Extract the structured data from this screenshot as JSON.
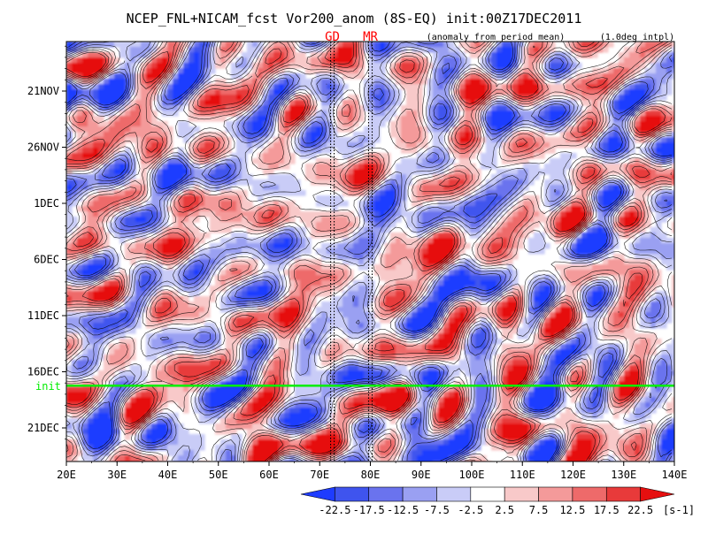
{
  "chart_data": {
    "type": "heatmap",
    "title": "NCEP_FNL+NICAM_fcst Vor200_anom (8S-EQ) init:00Z17DEC2011",
    "subtitle": "(anomaly from period mean)",
    "interp_note": "(1.0deg intpl)",
    "x_axis": {
      "range_deg_east": [
        20,
        140
      ],
      "ticks": [
        20,
        30,
        40,
        50,
        60,
        70,
        80,
        90,
        100,
        110,
        120,
        130,
        140
      ],
      "tick_labels": [
        "20E",
        "30E",
        "40E",
        "50E",
        "60E",
        "70E",
        "80E",
        "90E",
        "100E",
        "110E",
        "120E",
        "130E",
        "140E"
      ]
    },
    "y_axis": {
      "direction": "time increases downward",
      "ticks": [
        "21NOV",
        "26NOV",
        "1DEC",
        "6DEC",
        "11DEC",
        "16DEC",
        "21DEC"
      ]
    },
    "markers": [
      {
        "label": "GD",
        "lon": 72.5,
        "style": "dotted vertical line",
        "color": "#ff0000"
      },
      {
        "label": "MR",
        "lon": 80,
        "style": "dotted vertical line",
        "color": "#ff0000"
      }
    ],
    "init_line": {
      "label": "init",
      "date": "17DEC2011 00Z",
      "color": "#00ee00"
    },
    "colorbar": {
      "levels": [
        "-22.5",
        "-17.5",
        "-12.5",
        "-7.5",
        "-2.5",
        "2.5",
        "7.5",
        "12.5",
        "17.5",
        "22.5"
      ],
      "unit": "[s-1]",
      "colors": [
        "#1e3cff",
        "#3f54ee",
        "#6a73ee",
        "#9aa0f2",
        "#c9ccf7",
        "#ffffff",
        "#f8c9c9",
        "#f49a9a",
        "#ee6a6a",
        "#e83a3a",
        "#e60f0f"
      ],
      "extend": "both"
    }
  }
}
